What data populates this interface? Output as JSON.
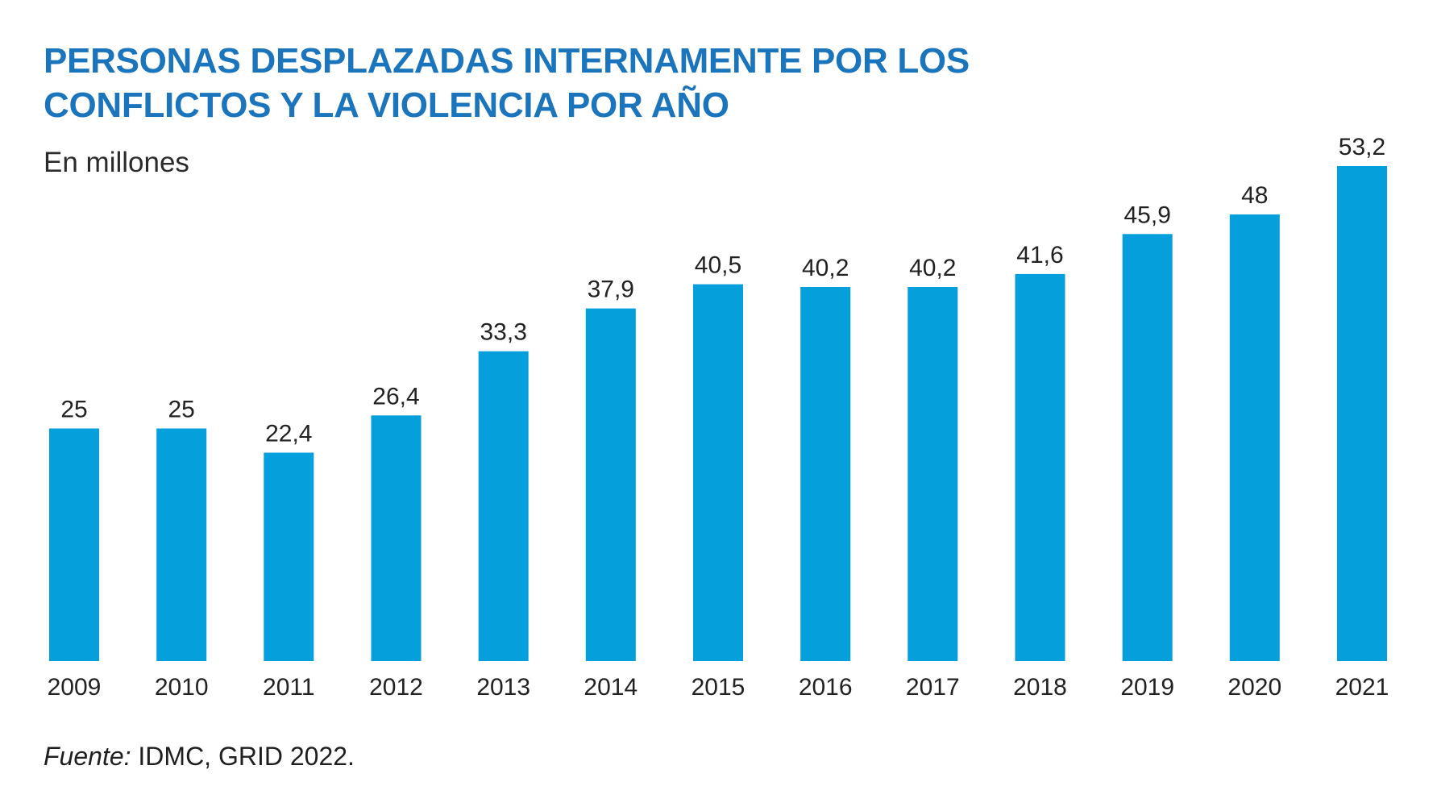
{
  "chart_data": {
    "type": "bar",
    "title_lines": [
      "PERSONAS DESPLAZADAS INTERNAMENTE POR LOS",
      "CONFLICTOS Y LA VIOLENCIA POR AÑO"
    ],
    "subtitle": "En millones",
    "categories": [
      "2009",
      "2010",
      "2011",
      "2012",
      "2013",
      "2014",
      "2015",
      "2016",
      "2017",
      "2018",
      "2019",
      "2020",
      "2021"
    ],
    "values": [
      25,
      25,
      22.4,
      26.4,
      33.3,
      37.9,
      40.5,
      40.2,
      40.2,
      41.6,
      45.9,
      48,
      53.2
    ],
    "value_labels": [
      "25",
      "25",
      "22,4",
      "26,4",
      "33,3",
      "37,9",
      "40,5",
      "40,2",
      "40,2",
      "41,6",
      "45,9",
      "48",
      "53,2"
    ],
    "xlabel": "",
    "ylabel": "",
    "ylim": [
      0,
      53.2
    ],
    "grid": false,
    "bar_color": "#059fdb",
    "source_label": "Fuente:",
    "source_text": " IDMC, GRID 2022."
  },
  "colors": {
    "title": "#1b75bc",
    "bar": "#059fdb",
    "text": "#222222"
  }
}
